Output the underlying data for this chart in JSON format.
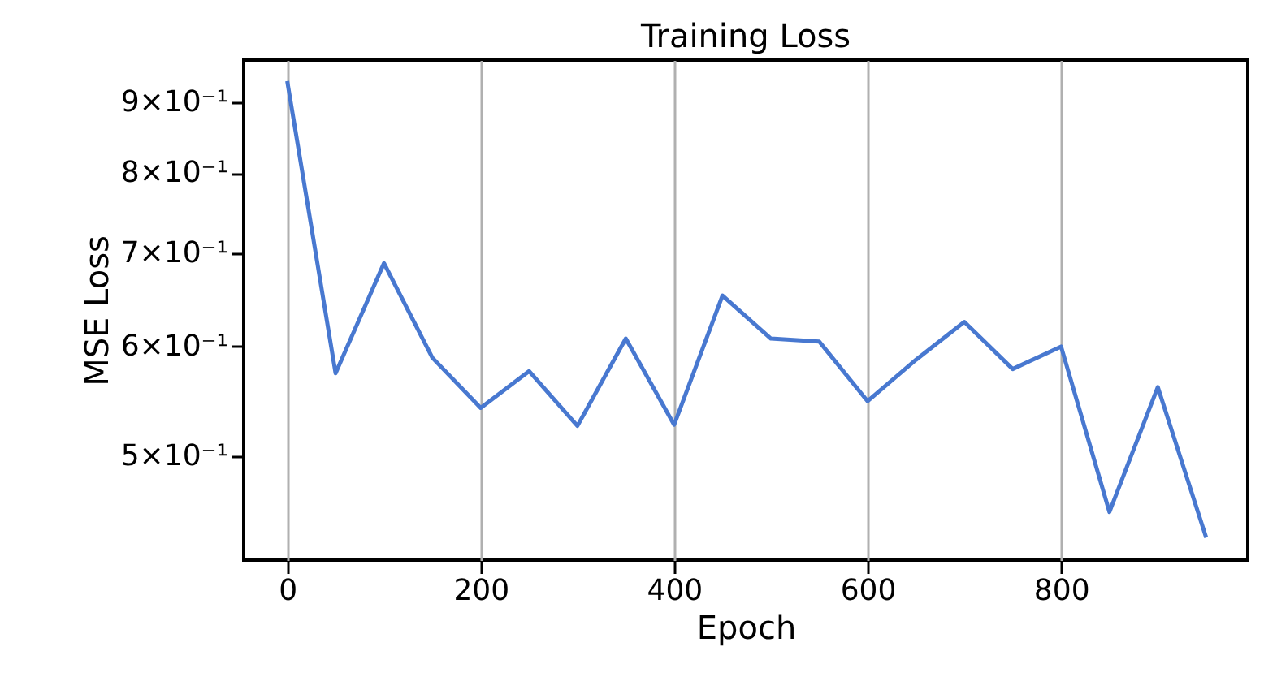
{
  "chart_data": {
    "type": "line",
    "title": "Training Loss",
    "xlabel": "Epoch",
    "ylabel": "MSE Loss",
    "x": [
      0,
      50,
      100,
      150,
      200,
      250,
      300,
      350,
      400,
      450,
      500,
      550,
      600,
      650,
      700,
      750,
      800,
      850,
      900,
      950
    ],
    "series": [
      {
        "color": "#4878d0",
        "values": [
          0.932,
          0.574,
          0.689,
          0.589,
          0.542,
          0.576,
          0.526,
          0.608,
          0.527,
          0.653,
          0.608,
          0.605,
          0.548,
          0.587,
          0.625,
          0.578,
          0.6,
          0.456,
          0.561,
          0.437
        ]
      }
    ],
    "xlim": [
      -45,
      993
    ],
    "xticks": [
      0,
      200,
      400,
      600,
      800
    ],
    "ylim": [
      0.421,
      0.965
    ],
    "yticks": [
      {
        "value": 0.5,
        "label": "5×10⁻¹"
      },
      {
        "value": 0.6,
        "label": "6×10⁻¹"
      },
      {
        "value": 0.7,
        "label": "7×10⁻¹"
      },
      {
        "value": 0.8,
        "label": "8×10⁻¹"
      },
      {
        "value": 0.9,
        "label": "9×10⁻¹"
      }
    ],
    "log": "y",
    "grid": "x",
    "marker": "none",
    "line_style": "solid"
  }
}
